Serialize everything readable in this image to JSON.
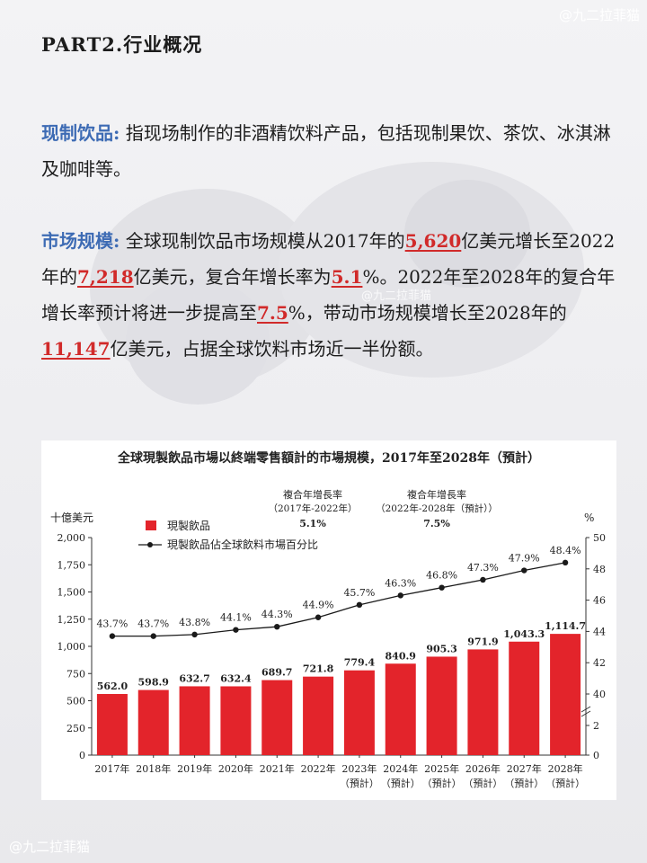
{
  "watermark": "@九二拉菲猫",
  "header": {
    "title": "PART2.行业概况"
  },
  "definition": {
    "term": "现制饮品:",
    "text": "指现场制作的非酒精饮料产品，包括现制果饮、茶饮、冰淇淋及咖啡等。"
  },
  "market": {
    "term": "市场规模:",
    "t1": "全球现制饮品市场规模从2017年的",
    "v1": "5,620",
    "t2": "亿美元增长至2022年的",
    "v2": "7,218",
    "t3": "亿美元，复合年增长率为",
    "v3": "5.1",
    "t4": "%。2022年至2028年的复合年增长率预计将进一步提高至",
    "v4": "7.5",
    "t5": "%，带动市场规模增长至2028年的",
    "v5": "11,147",
    "t6": "亿美元，占据全球饮料市场近一半份额。"
  },
  "colors": {
    "bar": "#e3242b",
    "line": "#1a1a1a",
    "term": "#3d6bb4",
    "highlight": "#d12a2a"
  },
  "chart_data": {
    "type": "bar",
    "title": "全球現製飲品市場以終端零售額計的市場規模，2017年至2028年（預計）",
    "ylabel": "十億美元",
    "y2label": "%",
    "ylim": [
      0,
      2000
    ],
    "yticks": [
      "0",
      "250",
      "500",
      "750",
      "1,000",
      "1,250",
      "1,500",
      "1,750",
      "2,000"
    ],
    "y2ticks": [
      "0",
      "2",
      "40",
      "42",
      "44",
      "46",
      "48",
      "50"
    ],
    "categories": [
      {
        "year": "2017年",
        "note": ""
      },
      {
        "year": "2018年",
        "note": ""
      },
      {
        "year": "2019年",
        "note": ""
      },
      {
        "year": "2020年",
        "note": ""
      },
      {
        "year": "2021年",
        "note": ""
      },
      {
        "year": "2022年",
        "note": ""
      },
      {
        "year": "2023年",
        "note": "（預計）"
      },
      {
        "year": "2024年",
        "note": "（預計）"
      },
      {
        "year": "2025年",
        "note": "（預計）"
      },
      {
        "year": "2026年",
        "note": "（預計）"
      },
      {
        "year": "2027年",
        "note": "（預計）"
      },
      {
        "year": "2028年",
        "note": "（預計）"
      }
    ],
    "series": [
      {
        "name": "現製飲品",
        "type": "bar",
        "values": [
          562.0,
          598.9,
          632.7,
          632.4,
          689.7,
          721.8,
          779.4,
          840.9,
          905.3,
          971.9,
          1043.3,
          1114.7
        ],
        "labels": [
          "562.0",
          "598.9",
          "632.7",
          "632.4",
          "689.7",
          "721.8",
          "779.4",
          "840.9",
          "905.3",
          "971.9",
          "1,043.3",
          "1,114.7"
        ]
      },
      {
        "name": "現製飲品佔全球飲料市場百分比",
        "type": "line",
        "values": [
          43.7,
          43.7,
          43.8,
          44.1,
          44.3,
          44.9,
          45.7,
          46.3,
          46.8,
          47.3,
          47.9,
          48.4
        ],
        "labels": [
          "43.7%",
          "43.7%",
          "43.8%",
          "44.1%",
          "44.3%",
          "44.9%",
          "45.7%",
          "46.3%",
          "46.8%",
          "47.3%",
          "47.9%",
          "48.4%"
        ]
      }
    ],
    "cagr": [
      {
        "label": "複合年增長率",
        "period": "（2017年-2022年）",
        "value": "5.1%"
      },
      {
        "label": "複合年增長率",
        "period": "（2022年-2028年（預計））",
        "value": "7.5%"
      }
    ],
    "legend": "top-left"
  }
}
